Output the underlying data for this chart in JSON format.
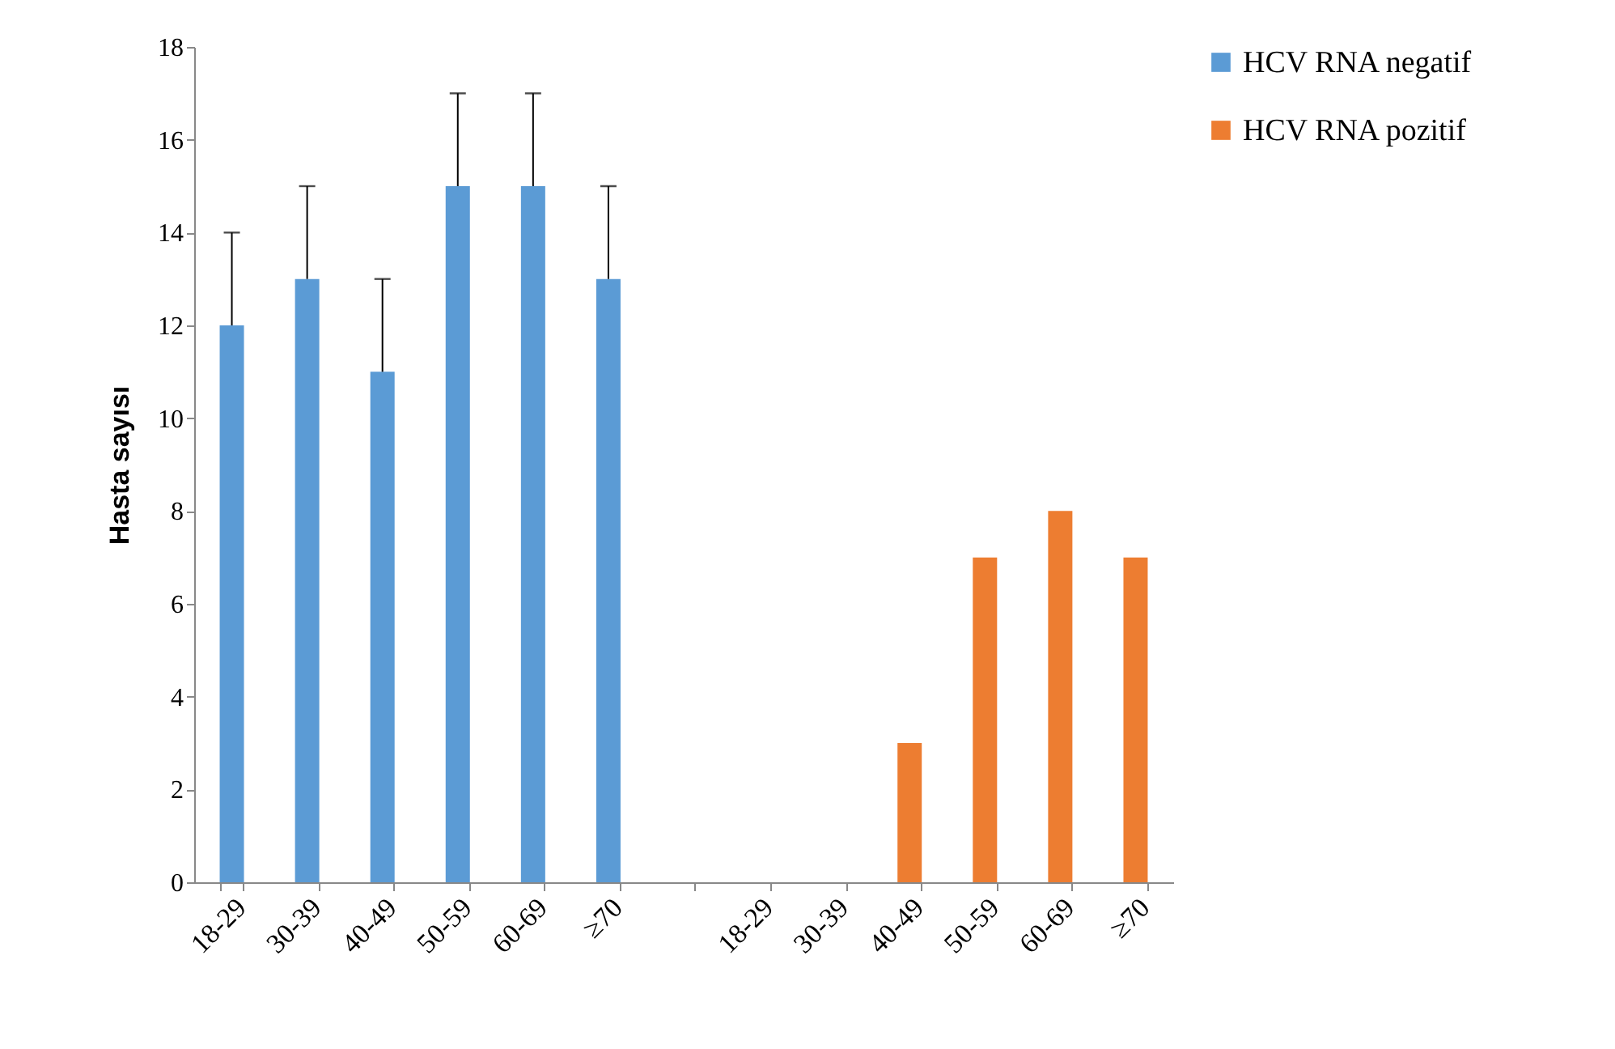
{
  "chart_data": {
    "type": "bar",
    "ylabel": "Hasta sayısı",
    "categories": [
      "18-29",
      "30-39",
      "40-49",
      "50-59",
      "60-69",
      "≥70",
      null,
      "18-29",
      "30-39",
      "40-49",
      "50-59",
      "60-69",
      "≥70"
    ],
    "series": [
      {
        "name": "HCV RNA negatif",
        "color": "#5b9bd5",
        "values": [
          12,
          13,
          11,
          15,
          15,
          13,
          null,
          null,
          null,
          null,
          null,
          null,
          null
        ],
        "errors": [
          [
            12,
            14
          ],
          [
            13,
            15
          ],
          [
            11,
            13
          ],
          [
            15,
            17
          ],
          [
            15,
            17
          ],
          [
            13,
            15
          ],
          null,
          null,
          null,
          null,
          null,
          null,
          null
        ]
      },
      {
        "name": "HCV RNA pozitif",
        "color": "#ed7d31",
        "values": [
          null,
          null,
          null,
          null,
          null,
          null,
          null,
          null,
          null,
          3,
          7,
          8,
          7
        ]
      }
    ],
    "ylim": [
      0,
      18
    ],
    "yticks": [
      0,
      2,
      4,
      6,
      8,
      10,
      12,
      14,
      16,
      18
    ],
    "grid": false,
    "legend": "right"
  }
}
